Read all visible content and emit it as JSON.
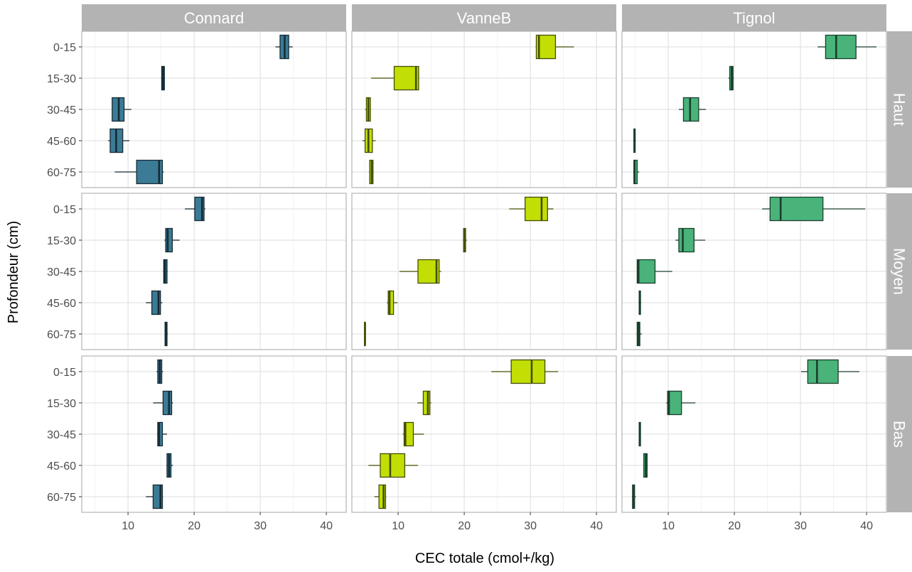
{
  "chart_data": {
    "type": "boxplot",
    "orientation": "horizontal",
    "xlabel": "CEC totale (cmol+/kg)",
    "ylabel": "Profondeur (cm)",
    "xlim": [
      3,
      43
    ],
    "xticks": [
      10,
      20,
      30,
      40
    ],
    "categories": [
      "0-15",
      "15-30",
      "30-45",
      "45-60",
      "60-75"
    ],
    "columns": [
      "Connard",
      "VanneB",
      "Tignol"
    ],
    "rows": [
      "Haut",
      "Moyen",
      "Bas"
    ],
    "grid": true,
    "legend": "none",
    "colors": {
      "Connard": "#3b7b96",
      "VanneB": "#c2de05",
      "Tignol": "#49b37a"
    },
    "panels": {
      "Connard": {
        "Haut": [
          {
            "category": "0-15",
            "min": 32.3,
            "q1": 33.0,
            "median": 33.7,
            "q3": 34.3,
            "max": 34.9
          },
          {
            "category": "15-30",
            "min": 15.0,
            "q1": 15.1,
            "median": 15.3,
            "q3": 15.5,
            "max": 15.6
          },
          {
            "category": "30-45",
            "min": 7.6,
            "q1": 7.6,
            "median": 8.6,
            "q3": 9.4,
            "max": 10.5
          },
          {
            "category": "45-60",
            "min": 7.0,
            "q1": 7.3,
            "median": 8.2,
            "q3": 9.2,
            "max": 10.2
          },
          {
            "category": "60-75",
            "min": 8.0,
            "q1": 11.3,
            "median": 14.7,
            "q3": 15.2,
            "max": 15.4
          }
        ],
        "Moyen": [
          {
            "category": "0-15",
            "min": 18.6,
            "q1": 20.1,
            "median": 21.2,
            "q3": 21.5,
            "max": 21.7
          },
          {
            "category": "15-30",
            "min": 15.5,
            "q1": 15.7,
            "median": 16.0,
            "q3": 16.7,
            "max": 17.8
          },
          {
            "category": "30-45",
            "min": 15.3,
            "q1": 15.4,
            "median": 15.6,
            "q3": 15.9,
            "max": 16.0
          },
          {
            "category": "45-60",
            "min": 12.7,
            "q1": 13.6,
            "median": 14.6,
            "q3": 14.9,
            "max": 15.2
          },
          {
            "category": "60-75",
            "min": 15.6,
            "q1": 15.6,
            "median": 15.8,
            "q3": 15.9,
            "max": 16.0
          }
        ],
        "Bas": [
          {
            "category": "0-15",
            "min": 14.3,
            "q1": 14.5,
            "median": 14.8,
            "q3": 15.1,
            "max": 15.3
          },
          {
            "category": "15-30",
            "min": 13.8,
            "q1": 15.3,
            "median": 16.2,
            "q3": 16.6,
            "max": 16.8
          },
          {
            "category": "30-45",
            "min": 14.4,
            "q1": 14.5,
            "median": 14.7,
            "q3": 15.2,
            "max": 15.9
          },
          {
            "category": "45-60",
            "min": 15.8,
            "q1": 15.9,
            "median": 16.2,
            "q3": 16.5,
            "max": 16.8
          },
          {
            "category": "60-75",
            "min": 12.7,
            "q1": 13.8,
            "median": 14.9,
            "q3": 15.2,
            "max": 15.3
          }
        ]
      },
      "VanneB": {
        "Haut": [
          {
            "category": "0-15",
            "min": 30.8,
            "q1": 30.9,
            "median": 31.3,
            "q3": 33.8,
            "max": 36.6
          },
          {
            "category": "15-30",
            "min": 5.9,
            "q1": 9.4,
            "median": 12.7,
            "q3": 13.1,
            "max": 13.2
          },
          {
            "category": "30-45",
            "min": 5.0,
            "q1": 5.2,
            "median": 5.5,
            "q3": 5.8,
            "max": 5.9
          },
          {
            "category": "45-60",
            "min": 4.6,
            "q1": 5.0,
            "median": 5.5,
            "q3": 6.1,
            "max": 6.6
          },
          {
            "category": "60-75",
            "min": 5.6,
            "q1": 5.7,
            "median": 6.0,
            "q3": 6.2,
            "max": 6.3
          }
        ],
        "Moyen": [
          {
            "category": "0-15",
            "min": 26.8,
            "q1": 29.2,
            "median": 31.7,
            "q3": 32.6,
            "max": 33.5
          },
          {
            "category": "15-30",
            "min": 19.8,
            "q1": 19.9,
            "median": 20.1,
            "q3": 20.2,
            "max": 20.4
          },
          {
            "category": "30-45",
            "min": 10.2,
            "q1": 13.0,
            "median": 15.8,
            "q3": 16.2,
            "max": 16.5
          },
          {
            "category": "45-60",
            "min": 8.3,
            "q1": 8.5,
            "median": 8.7,
            "q3": 9.3,
            "max": 9.9
          },
          {
            "category": "60-75",
            "min": 4.9,
            "q1": 4.9,
            "median": 5.0,
            "q3": 5.0,
            "max": 5.1
          }
        ],
        "Bas": [
          {
            "category": "0-15",
            "min": 24.1,
            "q1": 27.1,
            "median": 30.2,
            "q3": 32.2,
            "max": 34.2
          },
          {
            "category": "15-30",
            "min": 12.9,
            "q1": 13.8,
            "median": 14.5,
            "q3": 14.8,
            "max": 15.0
          },
          {
            "category": "30-45",
            "min": 10.7,
            "q1": 10.9,
            "median": 11.1,
            "q3": 12.3,
            "max": 13.9
          },
          {
            "category": "45-60",
            "min": 5.5,
            "q1": 7.3,
            "median": 8.8,
            "q3": 11.0,
            "max": 13.0
          },
          {
            "category": "60-75",
            "min": 6.4,
            "q1": 7.1,
            "median": 7.8,
            "q3": 8.1,
            "max": 8.2
          }
        ]
      },
      "Tignol": {
        "Haut": [
          {
            "category": "0-15",
            "min": 32.6,
            "q1": 33.8,
            "median": 35.4,
            "q3": 38.4,
            "max": 41.5
          },
          {
            "category": "15-30",
            "min": 19.1,
            "q1": 19.3,
            "median": 19.6,
            "q3": 19.8,
            "max": 19.9
          },
          {
            "category": "30-45",
            "min": 11.6,
            "q1": 12.3,
            "median": 13.3,
            "q3": 14.6,
            "max": 15.7
          },
          {
            "category": "45-60",
            "min": 4.7,
            "q1": 4.8,
            "median": 4.9,
            "q3": 5.0,
            "max": 5.1
          },
          {
            "category": "60-75",
            "min": 4.7,
            "q1": 4.8,
            "median": 4.9,
            "q3": 5.3,
            "max": 5.6
          }
        ],
        "Moyen": [
          {
            "category": "0-15",
            "min": 24.2,
            "q1": 25.4,
            "median": 27.0,
            "q3": 33.4,
            "max": 39.8
          },
          {
            "category": "15-30",
            "min": 11.1,
            "q1": 11.6,
            "median": 12.2,
            "q3": 13.9,
            "max": 15.6
          },
          {
            "category": "30-45",
            "min": 5.3,
            "q1": 5.3,
            "median": 5.5,
            "q3": 8.0,
            "max": 10.6
          },
          {
            "category": "45-60",
            "min": 5.5,
            "q1": 5.6,
            "median": 5.7,
            "q3": 5.8,
            "max": 5.9
          },
          {
            "category": "60-75",
            "min": 5.2,
            "q1": 5.3,
            "median": 5.5,
            "q3": 5.7,
            "max": 6.0
          }
        ],
        "Bas": [
          {
            "category": "0-15",
            "min": 30.1,
            "q1": 31.1,
            "median": 32.5,
            "q3": 35.7,
            "max": 38.9
          },
          {
            "category": "15-30",
            "min": 9.7,
            "q1": 9.9,
            "median": 10.1,
            "q3": 12.0,
            "max": 14.1
          },
          {
            "category": "30-45",
            "min": 5.6,
            "q1": 5.6,
            "median": 5.7,
            "q3": 5.8,
            "max": 5.8
          },
          {
            "category": "45-60",
            "min": 6.2,
            "q1": 6.3,
            "median": 6.6,
            "q3": 6.8,
            "max": 6.9
          },
          {
            "category": "60-75",
            "min": 4.5,
            "q1": 4.6,
            "median": 4.8,
            "q3": 4.9,
            "max": 5.1
          }
        ]
      }
    }
  }
}
